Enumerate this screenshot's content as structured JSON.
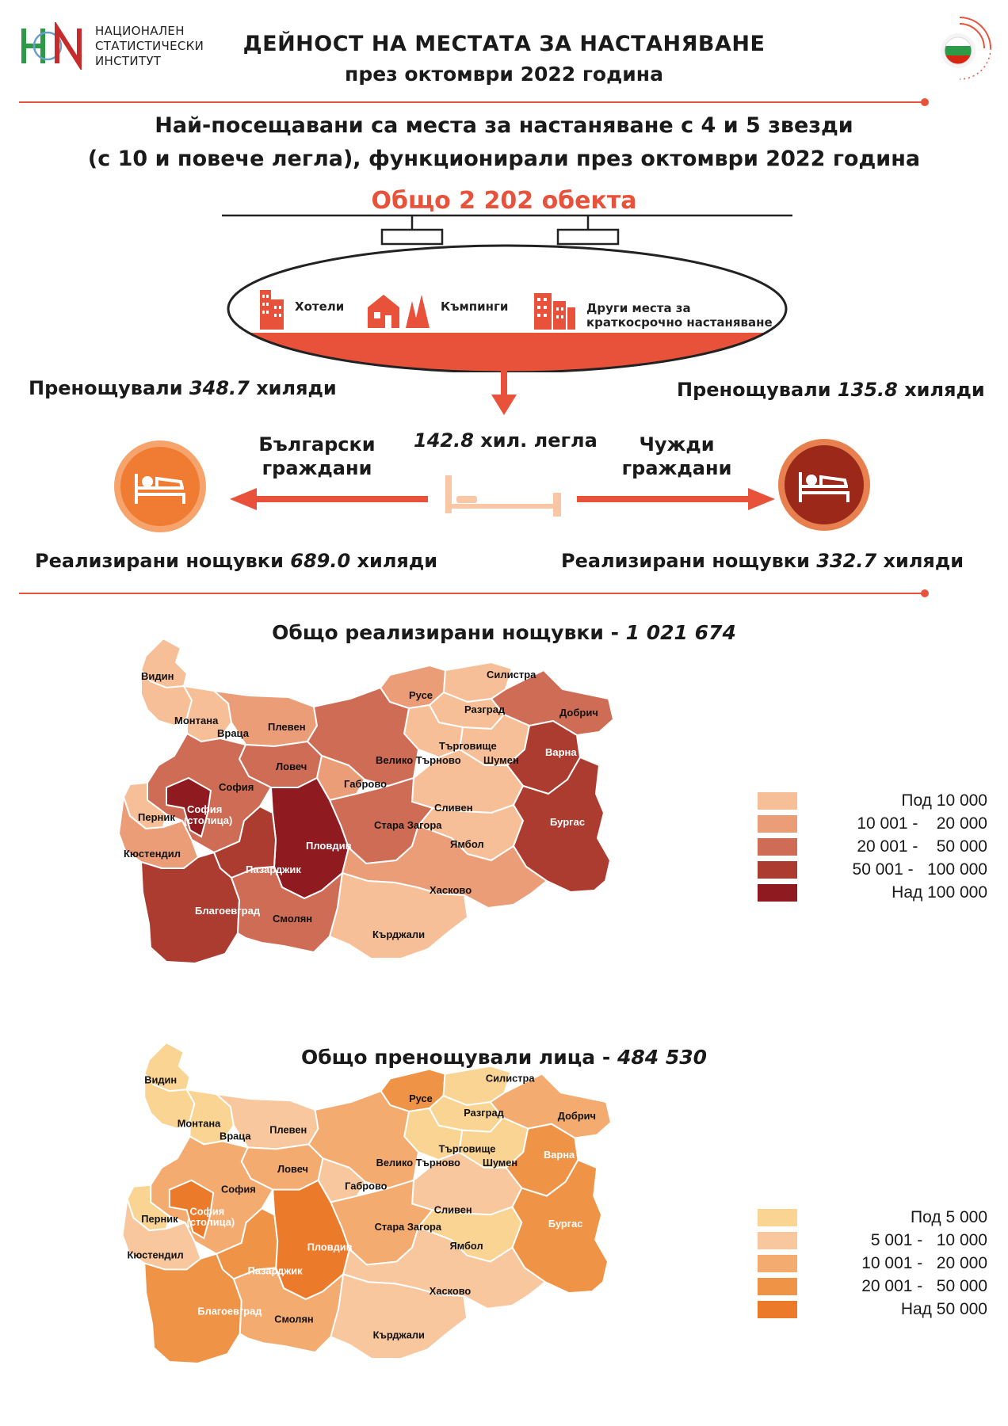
{
  "header": {
    "logo_lines": [
      "НАЦИОНАЛЕН",
      "СТАТИСТИЧЕСКИ",
      "ИНСТИТУТ"
    ],
    "title_line1": "ДЕЙНОСТ НА МЕСТАТА ЗА НАСТАНЯВАНЕ",
    "title_line2": "през октомври 2022 година"
  },
  "subtitle": {
    "line1": "Най-посещавани са места за настаняване с 4 и 5 звезди",
    "line2": "(с 10 и повече легла), функционирали през октомври 2022 година"
  },
  "summary": {
    "total_objects": "Общо 2 202 обекта",
    "categories": [
      "Хотели",
      "Къмпинги",
      "Други места за",
      "краткосрочно настаняване"
    ],
    "beds_value": "142.8",
    "beds_unit": " хил. легла",
    "bulgarian": {
      "label_line1": "Български",
      "label_line2": "граждани",
      "guests_prefix": "Пренощували ",
      "guests_value": "348.7",
      "guests_suffix": " хиляди",
      "nights_prefix": "Реализирани нощувки ",
      "nights_value": "689.0",
      "nights_suffix": " хиляди"
    },
    "foreign": {
      "label_line1": "Чужди",
      "label_line2": "граждани",
      "guests_prefix": "Пренощували ",
      "guests_value": "135.8",
      "guests_suffix": " хиляди",
      "nights_prefix": "Реализирани нощувки ",
      "nights_value": "332.7",
      "nights_suffix": " хиляди"
    }
  },
  "map_nights": {
    "title_prefix": "Общо реализирани нощувки - ",
    "title_value": "1 021 674",
    "legend": [
      {
        "label": "Под 10 000",
        "color": "#f7bf98"
      },
      {
        "label": "10 001 -    20 000",
        "color": "#eb9d78"
      },
      {
        "label": "20 001 -    50 000",
        "color": "#cf6c55"
      },
      {
        "label": "50 001 -   100 000",
        "color": "#ac3c2f"
      },
      {
        "label": "Над 100 000",
        "color": "#8f1a1f"
      }
    ]
  },
  "map_guests": {
    "title_prefix": "Общо пренощували лица - ",
    "title_value": "484 530",
    "legend": [
      {
        "label": "Под 5 000",
        "color": "#fad493"
      },
      {
        "label": "5 001 -   10 000",
        "color": "#f8c79e"
      },
      {
        "label": "10 001 -   20 000",
        "color": "#f3ab70"
      },
      {
        "label": "20 001 -   50 000",
        "color": "#ef9447"
      },
      {
        "label": "Над 50 000",
        "color": "#ec7a2b"
      }
    ]
  },
  "regions": [
    {
      "name": "Видин",
      "nights_class": 0,
      "guests_class": 0
    },
    {
      "name": "Монтана",
      "nights_class": 0,
      "guests_class": 0
    },
    {
      "name": "Враца",
      "nights_class": 0,
      "guests_class": 0
    },
    {
      "name": "Плевен",
      "nights_class": 1,
      "guests_class": 1
    },
    {
      "name": "Русе",
      "nights_class": 1,
      "guests_class": 3
    },
    {
      "name": "Силистра",
      "nights_class": 0,
      "guests_class": 0
    },
    {
      "name": "Разград",
      "nights_class": 0,
      "guests_class": 0
    },
    {
      "name": "Добрич",
      "nights_class": 2,
      "guests_class": 2
    },
    {
      "name": "Търговище",
      "nights_class": 0,
      "guests_class": 0
    },
    {
      "name": "Шумен",
      "nights_class": 0,
      "guests_class": 0
    },
    {
      "name": "Варна",
      "nights_class": 3,
      "guests_class": 3
    },
    {
      "name": "Ловеч",
      "nights_class": 2,
      "guests_class": 2
    },
    {
      "name": "Велико Търново",
      "nights_class": 2,
      "guests_class": 2
    },
    {
      "name": "Габрово",
      "nights_class": 1,
      "guests_class": 1
    },
    {
      "name": "София",
      "nights_class": 2,
      "guests_class": 2
    },
    {
      "name": "София",
      "name2": "(столица)",
      "nights_class": 4,
      "guests_class": 4
    },
    {
      "name": "Перник",
      "nights_class": 0,
      "guests_class": 0
    },
    {
      "name": "Кюстендил",
      "nights_class": 1,
      "guests_class": 1
    },
    {
      "name": "Сливен",
      "nights_class": 0,
      "guests_class": 1
    },
    {
      "name": "Стара Загора",
      "nights_class": 2,
      "guests_class": 2
    },
    {
      "name": "Ямбол",
      "nights_class": 0,
      "guests_class": 0
    },
    {
      "name": "Бургас",
      "nights_class": 3,
      "guests_class": 3
    },
    {
      "name": "Пловдив",
      "nights_class": 4,
      "guests_class": 4
    },
    {
      "name": "Пазарджик",
      "nights_class": 3,
      "guests_class": 3
    },
    {
      "name": "Благоевград",
      "nights_class": 3,
      "guests_class": 3
    },
    {
      "name": "Хасково",
      "nights_class": 1,
      "guests_class": 1
    },
    {
      "name": "Смолян",
      "nights_class": 2,
      "guests_class": 2
    },
    {
      "name": "Кърджали",
      "nights_class": 0,
      "guests_class": 1
    }
  ]
}
